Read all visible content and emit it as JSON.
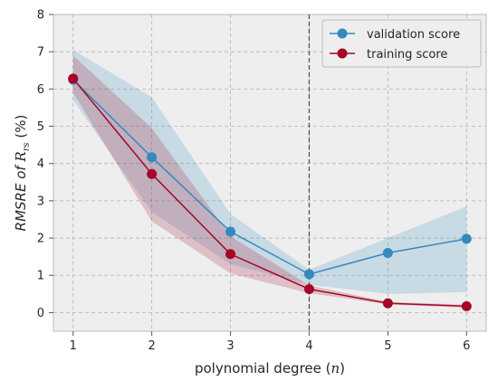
{
  "chart_data": {
    "type": "line",
    "xlabel": "polynomial degree (",
    "xlabel_var": "n",
    "xlabel_end": ")",
    "ylabel": "RMSRE  of ",
    "ylabel_var": "R",
    "ylabel_sub": "rs",
    "ylabel_end": " (%)",
    "x": [
      1,
      2,
      3,
      4,
      5,
      6
    ],
    "xlim": [
      0.75,
      6.25
    ],
    "ylim": [
      -0.5,
      8
    ],
    "xticks": [
      1,
      2,
      3,
      4,
      5,
      6
    ],
    "yticks": [
      0,
      1,
      2,
      3,
      4,
      5,
      6,
      7,
      8
    ],
    "grid": true,
    "vline_x": 4,
    "legend_position": "top-right",
    "series": [
      {
        "name": "validation score",
        "color": "#348ABD",
        "values": [
          6.25,
          4.17,
          2.17,
          1.03,
          1.6,
          1.98
        ],
        "band_low": [
          5.7,
          2.7,
          1.3,
          0.75,
          0.5,
          0.55
        ],
        "band_high": [
          7.05,
          5.78,
          2.65,
          1.15,
          2.0,
          2.85
        ]
      },
      {
        "name": "training score",
        "color": "#A60628",
        "values": [
          6.28,
          3.72,
          1.57,
          0.63,
          0.25,
          0.17
        ],
        "band_low": [
          5.9,
          2.45,
          1.05,
          0.52,
          0.22,
          0.13
        ],
        "band_high": [
          6.9,
          4.95,
          2.05,
          0.73,
          0.29,
          0.21
        ]
      }
    ]
  }
}
